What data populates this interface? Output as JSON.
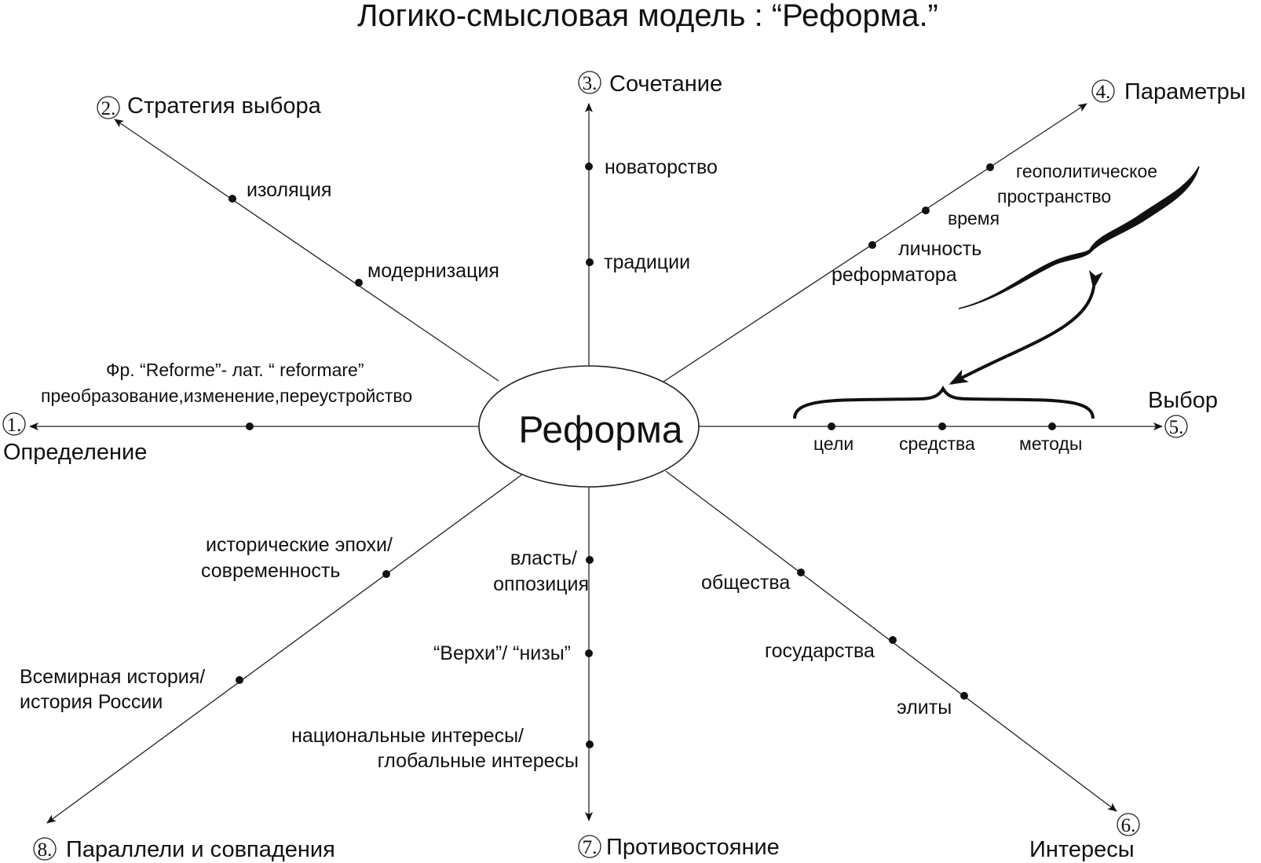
{
  "title": "Логико-смысловая модель : “Реформа.”",
  "center": "Реформа",
  "axes": [
    {
      "num": "1.",
      "label": "Определение"
    },
    {
      "num": "2.",
      "label": "Стратегия выбора"
    },
    {
      "num": "3.",
      "label": "Сочетание"
    },
    {
      "num": "4.",
      "label": "Параметры"
    },
    {
      "num": "5.",
      "label": "Выбор"
    },
    {
      "num": "6.",
      "label": "Интересы"
    },
    {
      "num": "7.",
      "label": "Противостояние"
    },
    {
      "num": "8.",
      "label": "Параллели и совпадения"
    }
  ],
  "nodes": {
    "strategy": [
      "изоляция",
      "модернизация"
    ],
    "combination": [
      "новаторство",
      "традиции"
    ],
    "parameters": [
      "геополитическое",
      "пространство",
      "время",
      "личность",
      "реформатора"
    ],
    "definition": [
      "Фр. “Reforme”- лат. “ reformare”",
      "преобразование,изменение,переустройство"
    ],
    "choice": [
      "цели",
      "средства",
      "методы"
    ],
    "parallels": [
      "исторические эпохи/",
      "современность",
      "Всемирная история/",
      "история России"
    ],
    "confrontation": [
      "власть/",
      "оппозиция",
      "“Верхи”/ “низы”",
      "национальные интересы/",
      "глобальные интересы"
    ],
    "interests": [
      "общества",
      "государства",
      "элиты"
    ]
  }
}
